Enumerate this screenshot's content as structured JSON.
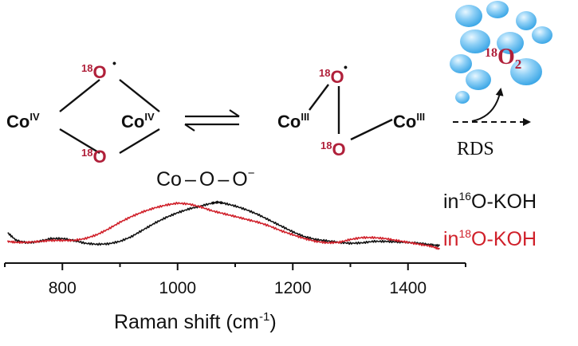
{
  "mechanism": {
    "left_complex": {
      "co_left": "Co",
      "co_left_ox": "IV",
      "co_right": "Co",
      "co_right_ox": "IV",
      "o_top_iso": "18",
      "o_top": "O",
      "o_top_radical": "•",
      "o_bottom_iso": "18",
      "o_bottom": "O"
    },
    "right_complex": {
      "co_left": "Co",
      "co_left_ox": "III",
      "co_right": "Co",
      "co_right_ox": "III",
      "o_top_iso": "18",
      "o_top": "O",
      "o_top_radical": "•",
      "o_bottom_iso": "18",
      "o_bottom": "O"
    },
    "product": {
      "iso": "18",
      "element": "O",
      "sub": "2"
    },
    "rds_label": "RDS",
    "colors": {
      "isotope_red": "#b0203a",
      "bubble_blue": "#4fb4ec",
      "black": "#111111"
    }
  },
  "chart_data": {
    "type": "line",
    "annotation": {
      "part1": "Co",
      "dash1": "–",
      "part2": "O",
      "dash2": "–",
      "part3": "O",
      "sup": "−"
    },
    "xlabel": "Raman shift (cm",
    "xlabel_sup": "-1",
    "xlabel_end": ")",
    "xlim": [
      700,
      1500
    ],
    "xticks": [
      800,
      1000,
      1200,
      1400
    ],
    "legend": [
      {
        "prefix": "in",
        "sup": "16",
        "suffix": "O-KOH",
        "color": "#111111"
      },
      {
        "prefix": "in",
        "sup": "18",
        "suffix": "O-KOH",
        "color": "#d0202a"
      }
    ],
    "series": [
      {
        "name": "in16O-KOH",
        "color": "#111111",
        "x": [
          705,
          720,
          740,
          760,
          780,
          800,
          820,
          840,
          860,
          880,
          900,
          920,
          940,
          960,
          980,
          1000,
          1020,
          1040,
          1060,
          1070,
          1080,
          1100,
          1120,
          1140,
          1160,
          1180,
          1200,
          1220,
          1240,
          1260,
          1280,
          1300,
          1320,
          1340,
          1360,
          1380,
          1400,
          1420,
          1440,
          1455
        ],
        "y": [
          0.3,
          0.14,
          0.09,
          0.12,
          0.18,
          0.18,
          0.14,
          0.08,
          0.06,
          0.07,
          0.12,
          0.22,
          0.36,
          0.5,
          0.62,
          0.72,
          0.8,
          0.86,
          0.92,
          0.94,
          0.92,
          0.86,
          0.78,
          0.68,
          0.56,
          0.44,
          0.32,
          0.22,
          0.16,
          0.13,
          0.1,
          0.08,
          0.09,
          0.12,
          0.12,
          0.11,
          0.1,
          0.08,
          0.05,
          0.03
        ]
      },
      {
        "name": "in18O-KOH",
        "color": "#d0202a",
        "x": [
          705,
          720,
          740,
          760,
          780,
          800,
          820,
          840,
          860,
          880,
          900,
          920,
          940,
          960,
          980,
          1000,
          1020,
          1040,
          1060,
          1080,
          1100,
          1120,
          1140,
          1160,
          1180,
          1200,
          1220,
          1240,
          1260,
          1280,
          1300,
          1320,
          1340,
          1360,
          1380,
          1400,
          1420,
          1440,
          1455
        ],
        "y": [
          0.12,
          0.1,
          0.1,
          0.12,
          0.14,
          0.14,
          0.14,
          0.18,
          0.26,
          0.38,
          0.52,
          0.64,
          0.74,
          0.82,
          0.88,
          0.92,
          0.9,
          0.84,
          0.76,
          0.7,
          0.64,
          0.58,
          0.52,
          0.44,
          0.34,
          0.26,
          0.18,
          0.12,
          0.09,
          0.1,
          0.16,
          0.2,
          0.2,
          0.18,
          0.14,
          0.1,
          0.06,
          0.02,
          -0.04
        ]
      }
    ]
  }
}
